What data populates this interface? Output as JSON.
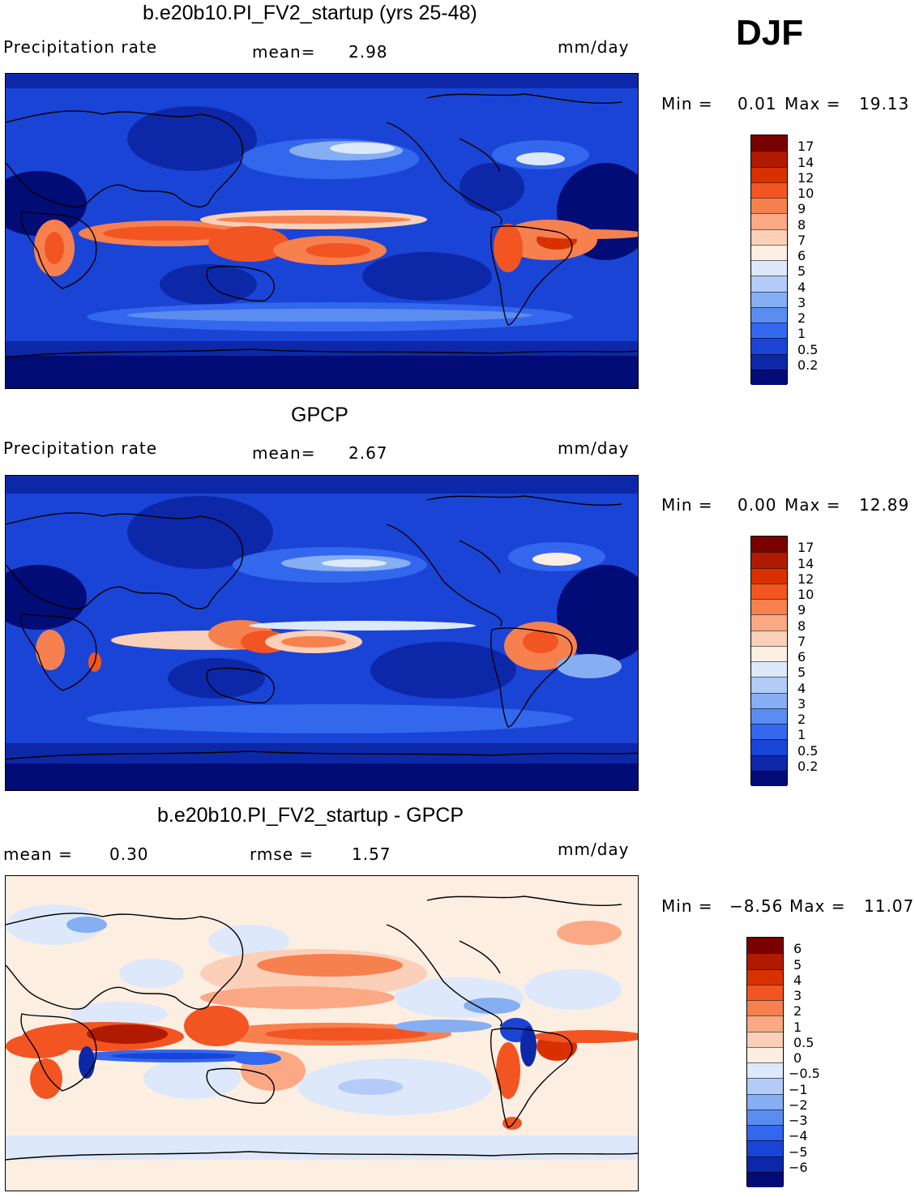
{
  "season": "DJF",
  "units": "mm/day",
  "panels": [
    {
      "title": "b.e20b10.PI_FV2_startup (yrs 25-48)",
      "variable": "Precipitation rate",
      "stat1_label": "mean=",
      "stat1_value": "2.98",
      "min_label": "Min =",
      "min_value": "0.01",
      "max_label": "Max =",
      "max_value": "19.13",
      "levels": [
        "17",
        "14",
        "12",
        "10",
        "9",
        "8",
        "7",
        "6",
        "5",
        "4",
        "3",
        "2",
        "1",
        "0.5",
        "0.2"
      ]
    },
    {
      "title": "GPCP",
      "variable": "Precipitation rate",
      "stat1_label": "mean=",
      "stat1_value": "2.67",
      "min_label": "Min =",
      "min_value": "0.00",
      "max_label": "Max =",
      "max_value": "12.89",
      "levels": [
        "17",
        "14",
        "12",
        "10",
        "9",
        "8",
        "7",
        "6",
        "5",
        "4",
        "3",
        "2",
        "1",
        "0.5",
        "0.2"
      ]
    },
    {
      "title": "b.e20b10.PI_FV2_startup - GPCP",
      "stat1_label": "mean =",
      "stat1_value": "0.30",
      "stat2_label": "rmse =",
      "stat2_value": "1.57",
      "min_label": "Min =",
      "min_value": "−8.56",
      "max_label": "Max =",
      "max_value": "11.07",
      "levels": [
        "6",
        "5",
        "4",
        "3",
        "2",
        "1",
        "0.5",
        "0",
        "−0.5",
        "−1",
        "−2",
        "−3",
        "−4",
        "−5",
        "−6"
      ]
    }
  ],
  "colors": {
    "abs_scale": [
      "#7a0000",
      "#b01a00",
      "#d93000",
      "#f25522",
      "#f7804f",
      "#fba985",
      "#fcd0b8",
      "#fdeee2",
      "#dde9fb",
      "#b3ccf7",
      "#86aef2",
      "#5b8cf0",
      "#3367ee",
      "#1a44d6",
      "#0c28a8",
      "#020c76"
    ],
    "diff_scale": [
      "#7a0000",
      "#b01a00",
      "#d93000",
      "#f25522",
      "#f7804f",
      "#fba985",
      "#fcd0b8",
      "#fdeee2",
      "#dde9fb",
      "#b3ccf7",
      "#86aef2",
      "#5b8cf0",
      "#3367ee",
      "#1a44d6",
      "#0c28a8",
      "#020c76"
    ]
  }
}
